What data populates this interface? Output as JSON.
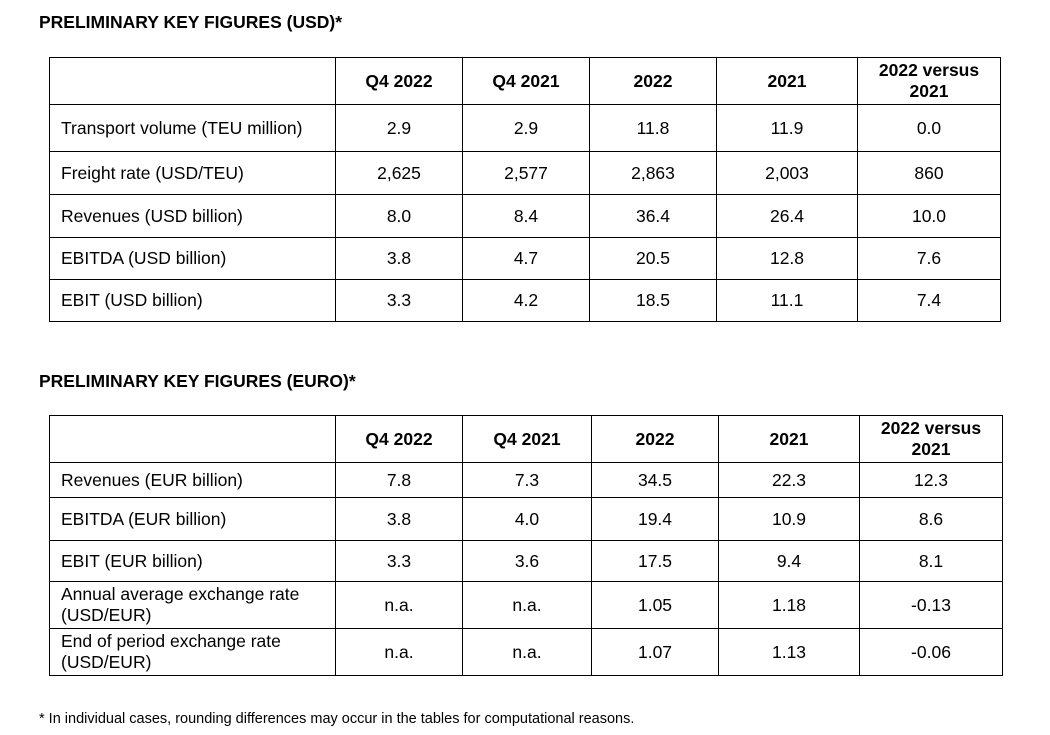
{
  "usd": {
    "title": "PRELIMINARY KEY FIGURES (USD)*",
    "headers": [
      "",
      "Q4 2022",
      "Q4 2021",
      "2022",
      "2021",
      "2022 versus 2021"
    ],
    "rows": [
      {
        "label": "Transport volume (TEU million)",
        "values": [
          "2.9",
          "2.9",
          "11.8",
          "11.9",
          "0.0"
        ]
      },
      {
        "label": "Freight rate (USD/TEU)",
        "values": [
          "2,625",
          "2,577",
          "2,863",
          "2,003",
          "860"
        ]
      },
      {
        "label": "Revenues (USD billion)",
        "values": [
          "8.0",
          "8.4",
          "36.4",
          "26.4",
          "10.0"
        ]
      },
      {
        "label": "EBITDA (USD billion)",
        "values": [
          "3.8",
          "4.7",
          "20.5",
          "12.8",
          "7.6"
        ]
      },
      {
        "label": "EBIT (USD billion)",
        "values": [
          "3.3",
          "4.2",
          "18.5",
          "11.1",
          "7.4"
        ]
      }
    ]
  },
  "eur": {
    "title": "PRELIMINARY KEY FIGURES (EURO)*",
    "headers": [
      "",
      "Q4 2022",
      "Q4 2021",
      "2022",
      "2021",
      "2022 versus 2021"
    ],
    "rows": [
      {
        "label": "Revenues (EUR billion)",
        "values": [
          "7.8",
          "7.3",
          "34.5",
          "22.3",
          "12.3"
        ]
      },
      {
        "label": "EBITDA (EUR billion)",
        "values": [
          "3.8",
          "4.0",
          "19.4",
          "10.9",
          "8.6"
        ]
      },
      {
        "label": "EBIT (EUR billion)",
        "values": [
          "3.3",
          "3.6",
          "17.5",
          "9.4",
          "8.1"
        ]
      },
      {
        "label": "Annual average exchange rate (USD/EUR)",
        "values": [
          "n.a.",
          "n.a.",
          "1.05",
          "1.18",
          "-0.13"
        ]
      },
      {
        "label": "End of period exchange rate (USD/EUR)",
        "values": [
          "n.a.",
          "n.a.",
          "1.07",
          "1.13",
          "-0.06"
        ]
      }
    ]
  },
  "footnote": "* In individual cases, rounding differences may occur in the tables for computational reasons."
}
